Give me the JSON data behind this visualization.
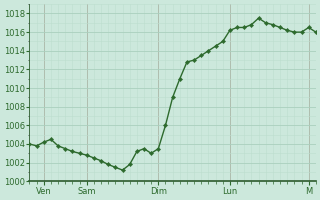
{
  "x": [
    0,
    1,
    2,
    3,
    4,
    5,
    6,
    7,
    8,
    9,
    10,
    11,
    12,
    13,
    14,
    15,
    16,
    17,
    18,
    19,
    20,
    21,
    22,
    23,
    24,
    25,
    26,
    27,
    28,
    29,
    30,
    31,
    32,
    33,
    34,
    35,
    36,
    37,
    38,
    39,
    40
  ],
  "y": [
    1004.0,
    1003.8,
    1004.2,
    1004.5,
    1003.8,
    1003.5,
    1003.2,
    1003.0,
    1002.8,
    1002.5,
    1002.2,
    1001.8,
    1001.5,
    1001.2,
    1001.8,
    1003.2,
    1003.5,
    1003.0,
    1003.5,
    1006.0,
    1009.0,
    1011.0,
    1012.8,
    1013.0,
    1013.5,
    1014.0,
    1014.5,
    1015.0,
    1016.2,
    1016.5,
    1016.5,
    1016.8,
    1017.5,
    1017.0,
    1016.8,
    1016.5,
    1016.2,
    1016.0,
    1016.0,
    1016.5,
    1016.0
  ],
  "x_tick_positions": [
    2,
    8,
    18,
    28,
    39
  ],
  "x_tick_labels": [
    "Ven",
    "Sam",
    "Dim",
    "Lun",
    "M"
  ],
  "x_vline_positions": [
    2,
    8,
    18,
    28,
    39
  ],
  "xlim": [
    0,
    40
  ],
  "ylim": [
    1000,
    1019
  ],
  "yticks": [
    1000,
    1002,
    1004,
    1006,
    1008,
    1010,
    1012,
    1014,
    1016,
    1018
  ],
  "line_color": "#2d6a2d",
  "marker": "D",
  "marker_size": 2.2,
  "bg_color": "#cce8dc",
  "grid_color_major": "#aacfbe",
  "grid_color_minor": "#bddece",
  "axis_color": "#2d5a2d",
  "tick_color": "#2d6a2d",
  "label_color": "#2d6a2d",
  "vline_color": "#cc4444",
  "bottom_spine_color": "#2d5a2d"
}
